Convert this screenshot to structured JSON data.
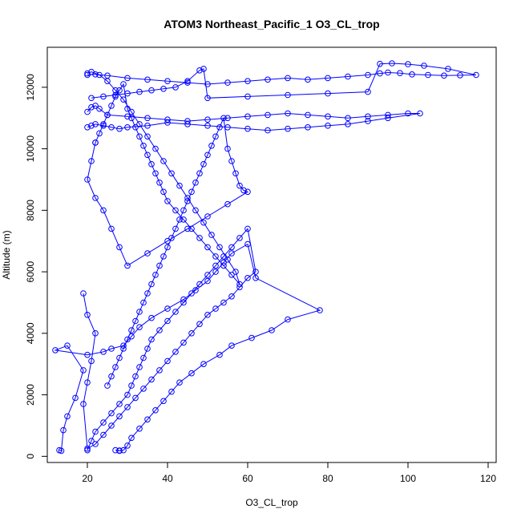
{
  "chart_data": {
    "type": "line",
    "title": "ATOM3 Northeast_Pacific_1 O3_CL_trop",
    "xlabel": "O3_CL_trop",
    "ylabel": "Altitude (m)",
    "xlim": [
      10,
      122
    ],
    "ylim": [
      -200,
      13300
    ],
    "xticks": [
      20,
      40,
      60,
      80,
      100,
      120
    ],
    "yticks": [
      0,
      2000,
      4000,
      6000,
      8000,
      10000,
      12000
    ],
    "grid": false,
    "legend": "none",
    "series_color": "#0000ff",
    "series": [
      {
        "x": [
          13,
          13.5,
          14,
          15,
          17,
          19,
          15,
          12,
          20,
          24,
          26,
          29,
          31,
          33,
          36,
          40,
          44,
          47,
          50,
          52,
          54,
          56,
          60,
          62,
          78,
          70,
          66,
          61,
          56,
          53,
          49,
          46,
          43,
          41,
          39,
          37,
          35,
          33,
          31,
          30,
          29,
          28,
          28,
          27
        ],
        "y": [
          200,
          180,
          850,
          1300,
          1900,
          2800,
          3600,
          3450,
          3300,
          3400,
          3500,
          3600,
          3900,
          4200,
          4500,
          4800,
          5100,
          5400,
          5700,
          6000,
          6300,
          6600,
          6900,
          5800,
          4750,
          4450,
          4100,
          3850,
          3600,
          3300,
          3000,
          2700,
          2400,
          2100,
          1800,
          1500,
          1200,
          900,
          600,
          350,
          200,
          180,
          190,
          200
        ]
      },
      {
        "x": [
          20,
          21,
          22,
          24,
          26,
          28,
          30,
          31,
          32,
          33,
          34,
          35,
          36,
          38,
          40,
          42,
          44,
          46,
          48,
          50,
          52,
          54,
          56,
          58,
          60,
          62,
          60,
          58,
          56,
          54,
          52,
          50,
          48,
          46,
          44,
          42,
          40,
          38,
          36,
          34,
          32,
          30,
          28,
          26,
          24,
          22,
          20,
          19,
          20,
          21,
          22,
          20,
          19
        ],
        "y": [
          200,
          500,
          800,
          1100,
          1400,
          1700,
          2000,
          2300,
          2600,
          2900,
          3200,
          3500,
          3800,
          4100,
          4400,
          4700,
          5000,
          5300,
          5600,
          5900,
          6200,
          6500,
          6800,
          7100,
          7400,
          6000,
          5800,
          5500,
          5200,
          5000,
          4800,
          4600,
          4300,
          4000,
          3700,
          3400,
          3100,
          2800,
          2500,
          2200,
          1900,
          1600,
          1300,
          1000,
          700,
          400,
          250,
          1700,
          2400,
          3100,
          4000,
          4600,
          5300
        ]
      },
      {
        "x": [
          25,
          26,
          27,
          28,
          29,
          30,
          31,
          32,
          33,
          34,
          35,
          36,
          37,
          38,
          39,
          40,
          41,
          42,
          43,
          44,
          45,
          46,
          47,
          48,
          49,
          50,
          51,
          52,
          53,
          54,
          55,
          56,
          57,
          58,
          59,
          60,
          55,
          50,
          45,
          40,
          35,
          30,
          28,
          26,
          24,
          22,
          20,
          21,
          22
        ],
        "y": [
          2300,
          2600,
          2900,
          3200,
          3500,
          3800,
          4100,
          4400,
          4700,
          5000,
          5300,
          5600,
          5900,
          6200,
          6500,
          6800,
          7100,
          7400,
          7700,
          8000,
          8300,
          8600,
          8900,
          9200,
          9500,
          9800,
          10100,
          10400,
          10700,
          11000,
          10000,
          9600,
          9200,
          8800,
          8650,
          8600,
          8200,
          7800,
          7400,
          7000,
          6600,
          6200,
          6800,
          7400,
          8000,
          8400,
          9000,
          9600,
          10200
        ]
      },
      {
        "x": [
          22,
          23,
          24,
          25,
          26,
          27,
          28,
          29,
          30,
          31,
          32,
          33,
          34,
          35,
          36,
          37,
          38,
          39,
          40,
          42,
          44,
          46,
          48,
          50,
          52,
          54,
          56,
          58,
          57,
          55,
          53,
          51,
          49,
          47,
          45,
          43,
          41,
          39,
          37,
          35,
          33,
          31,
          29,
          27,
          25,
          23,
          21,
          20
        ],
        "y": [
          10200,
          10500,
          10800,
          11100,
          11400,
          11700,
          11900,
          12100,
          11300,
          11000,
          10700,
          10400,
          10100,
          9800,
          9500,
          9200,
          8900,
          8600,
          8300,
          8000,
          7700,
          7400,
          7100,
          6800,
          6500,
          6200,
          5900,
          5600,
          6000,
          6400,
          6800,
          7200,
          7600,
          8000,
          8400,
          8800,
          9200,
          9600,
          10000,
          10400,
          10800,
          11200,
          11600,
          11900,
          12200,
          12400,
          12500,
          12450
        ]
      },
      {
        "x": [
          20,
          21,
          22,
          23,
          25,
          30,
          35,
          40,
          45,
          50,
          55,
          60,
          65,
          70,
          75,
          80,
          85,
          90,
          95,
          100,
          103,
          95,
          90,
          85,
          80,
          75,
          70,
          65,
          60,
          55,
          50,
          45,
          40,
          35,
          30,
          28,
          26,
          24,
          22,
          21,
          20
        ],
        "y": [
          11200,
          11350,
          11400,
          11300,
          11100,
          11050,
          11000,
          10950,
          10900,
          10950,
          11000,
          11050,
          11100,
          11150,
          11100,
          11050,
          11000,
          11050,
          11100,
          11150,
          11150,
          11000,
          10900,
          10800,
          10750,
          10700,
          10650,
          10600,
          10650,
          10700,
          10750,
          10800,
          10850,
          10750,
          10700,
          10650,
          10700,
          10750,
          10800,
          10750,
          10700
        ]
      },
      {
        "x": [
          20,
          22,
          25,
          30,
          35,
          40,
          45,
          50,
          55,
          60,
          65,
          70,
          75,
          80,
          85,
          90,
          93,
          95,
          98,
          101,
          105,
          109,
          113,
          117,
          110,
          104,
          100,
          96,
          93,
          90,
          80,
          70,
          60,
          50,
          49,
          48,
          45,
          42,
          39,
          36,
          33,
          30,
          27,
          24,
          21
        ],
        "y": [
          12400,
          12420,
          12380,
          12300,
          12250,
          12200,
          12150,
          12100,
          12150,
          12200,
          12250,
          12300,
          12250,
          12300,
          12350,
          12400,
          12450,
          12480,
          12460,
          12420,
          12400,
          12380,
          12390,
          12400,
          12600,
          12700,
          12750,
          12780,
          12760,
          11850,
          11800,
          11750,
          11700,
          11650,
          12600,
          12550,
          12200,
          12000,
          11950,
          11900,
          11850,
          11800,
          11750,
          11700,
          11650
        ]
      }
    ]
  }
}
